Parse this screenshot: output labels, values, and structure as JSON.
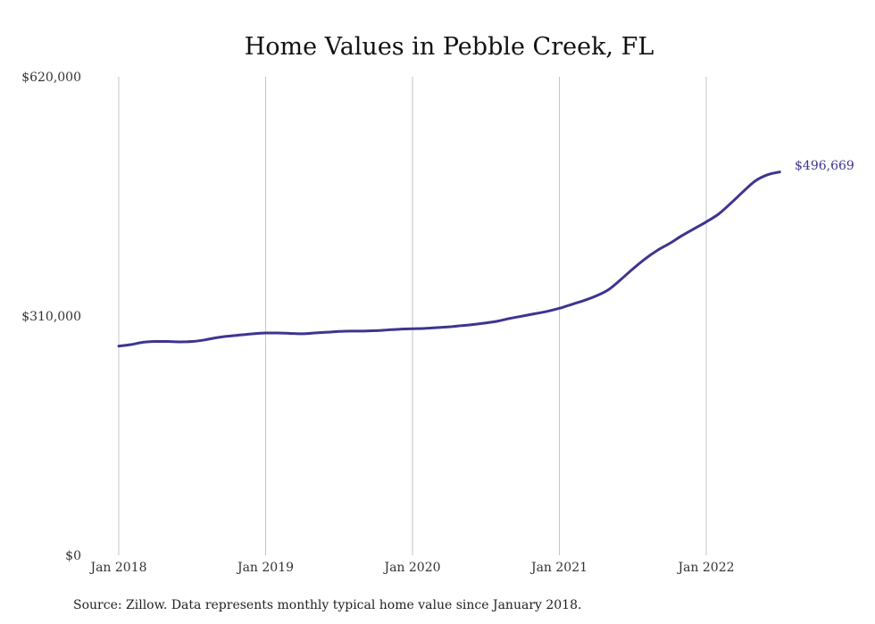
{
  "chart_data": {
    "type": "line",
    "title": "Home Values in Pebble Creek, FL",
    "xlabel": "",
    "ylabel": "",
    "ylim": [
      0,
      620000
    ],
    "yticks": [
      {
        "value": 0,
        "label": "$0"
      },
      {
        "value": 310000,
        "label": "$310,000"
      },
      {
        "value": 620000,
        "label": "$620,000"
      }
    ],
    "xticks": [
      {
        "value": "2018-01",
        "label": "Jan 2018"
      },
      {
        "value": "2019-01",
        "label": "Jan 2019"
      },
      {
        "value": "2020-01",
        "label": "Jan 2020"
      },
      {
        "value": "2021-01",
        "label": "Jan 2021"
      },
      {
        "value": "2022-01",
        "label": "Jan 2022"
      }
    ],
    "grid": "vertical",
    "legend": "none",
    "line_color": "#3d3590",
    "x": [
      "2018-01",
      "2018-02",
      "2018-03",
      "2018-04",
      "2018-05",
      "2018-06",
      "2018-07",
      "2018-08",
      "2018-09",
      "2018-10",
      "2018-11",
      "2018-12",
      "2019-01",
      "2019-02",
      "2019-03",
      "2019-04",
      "2019-05",
      "2019-06",
      "2019-07",
      "2019-08",
      "2019-09",
      "2019-10",
      "2019-11",
      "2019-12",
      "2020-01",
      "2020-02",
      "2020-03",
      "2020-04",
      "2020-05",
      "2020-06",
      "2020-07",
      "2020-08",
      "2020-09",
      "2020-10",
      "2020-11",
      "2020-12",
      "2021-01",
      "2021-02",
      "2021-03",
      "2021-04",
      "2021-05",
      "2021-06",
      "2021-07",
      "2021-08",
      "2021-09",
      "2021-10",
      "2021-11",
      "2021-12",
      "2022-01",
      "2022-02",
      "2022-03",
      "2022-04",
      "2022-05",
      "2022-06",
      "2022-07"
    ],
    "series": [
      {
        "values": [
          271000,
          273000,
          276000,
          277000,
          277000,
          276500,
          277000,
          279000,
          282000,
          284000,
          285500,
          287000,
          288000,
          288000,
          287500,
          287000,
          288000,
          289000,
          290000,
          290500,
          290500,
          291000,
          292000,
          293000,
          293500,
          294000,
          295000,
          296000,
          297500,
          299000,
          301000,
          303500,
          307000,
          310000,
          313000,
          316000,
          320000,
          325000,
          330000,
          336000,
          344000,
          357000,
          371000,
          384000,
          395000,
          404000,
          414000,
          423000,
          432000,
          442000,
          456000,
          471000,
          485000,
          493000,
          496669
        ]
      }
    ],
    "annotations": [
      {
        "x": "2022-07",
        "text": "$496,669"
      }
    ]
  },
  "source_note": "Source: Zillow. Data represents monthly typical home value since January 2018."
}
